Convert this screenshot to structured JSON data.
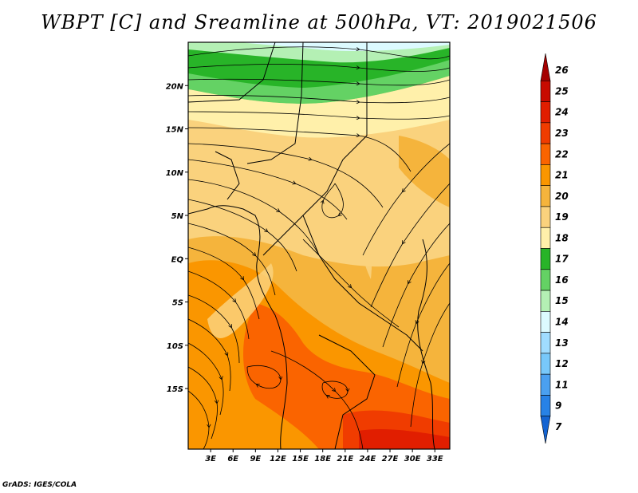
{
  "title": "WBPT [C] and Sreamline at 500hPa, VT: 2019021506",
  "credit": "GrADS: IGES/COLA",
  "map": {
    "variable": "WBPT",
    "units": "C",
    "level": "500hPa",
    "valid_time": "2019021506",
    "lon_range": [
      0,
      35
    ],
    "lat_range": [
      -22,
      25
    ],
    "lon_ticks": [
      {
        "value": 3,
        "label": "3E"
      },
      {
        "value": 6,
        "label": "6E"
      },
      {
        "value": 9,
        "label": "9E"
      },
      {
        "value": 12,
        "label": "12E"
      },
      {
        "value": 15,
        "label": "15E"
      },
      {
        "value": 18,
        "label": "18E"
      },
      {
        "value": 21,
        "label": "21E"
      },
      {
        "value": 24,
        "label": "24E"
      },
      {
        "value": 27,
        "label": "27E"
      },
      {
        "value": 30,
        "label": "30E"
      },
      {
        "value": 33,
        "label": "33E"
      }
    ],
    "lat_ticks": [
      {
        "value": 20,
        "label": "20N"
      },
      {
        "value": 15,
        "label": "15N"
      },
      {
        "value": 10,
        "label": "10N"
      },
      {
        "value": 5,
        "label": "5N"
      },
      {
        "value": 0,
        "label": "EQ"
      },
      {
        "value": -5,
        "label": "5S"
      },
      {
        "value": -10,
        "label": "10S"
      },
      {
        "value": -15,
        "label": "15S"
      }
    ]
  },
  "colorbar": {
    "levels": [
      {
        "label": "26",
        "color": "#a50000"
      },
      {
        "label": "25",
        "color": "#c80a00"
      },
      {
        "label": "24",
        "color": "#e11e00"
      },
      {
        "label": "23",
        "color": "#f03c00"
      },
      {
        "label": "22",
        "color": "#fa6400"
      },
      {
        "label": "21",
        "color": "#fa9600"
      },
      {
        "label": "20",
        "color": "#f5b43c"
      },
      {
        "label": "19",
        "color": "#fad27d"
      },
      {
        "label": "18",
        "color": "#fff0aa"
      },
      {
        "label": "17",
        "color": "#28b428"
      },
      {
        "label": "16",
        "color": "#64d264"
      },
      {
        "label": "15",
        "color": "#b4f0b4"
      },
      {
        "label": "14",
        "color": "#dcfaff"
      },
      {
        "label": "13",
        "color": "#a0dcff"
      },
      {
        "label": "12",
        "color": "#78c8fa"
      },
      {
        "label": "11",
        "color": "#4ba0f0"
      },
      {
        "label": "9",
        "color": "#2882e6"
      },
      {
        "label": "7",
        "color": "#1464d2"
      }
    ]
  }
}
